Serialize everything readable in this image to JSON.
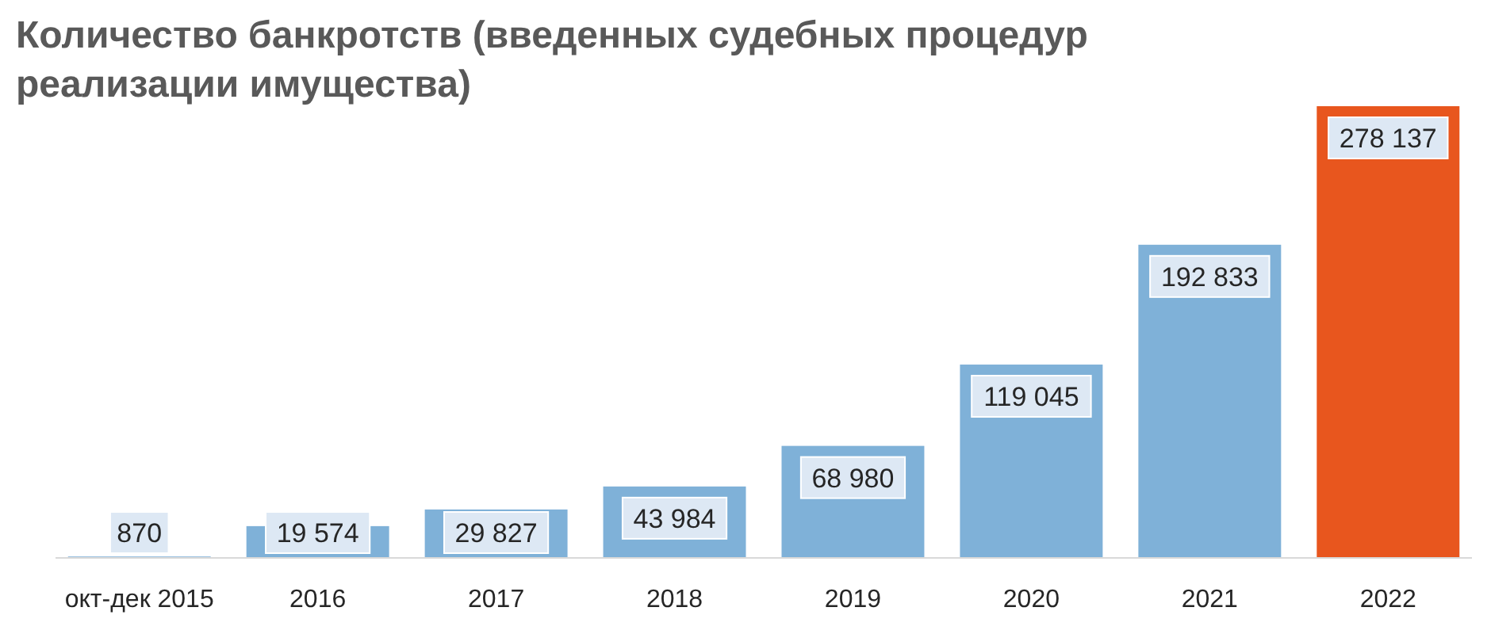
{
  "chart_data": {
    "type": "bar",
    "title": "Количество банкротств (введенных судебных процедур реализации имущества)",
    "categories": [
      "окт-дек 2015",
      "2016",
      "2017",
      "2018",
      "2019",
      "2020",
      "2021",
      "2022"
    ],
    "values": [
      870,
      19574,
      29827,
      43984,
      68980,
      119045,
      192833,
      278137
    ],
    "colors": [
      "#7fb1d8",
      "#7fb1d8",
      "#7fb1d8",
      "#7fb1d8",
      "#7fb1d8",
      "#7fb1d8",
      "#7fb1d8",
      "#e8561e"
    ],
    "data_labels": true
  }
}
